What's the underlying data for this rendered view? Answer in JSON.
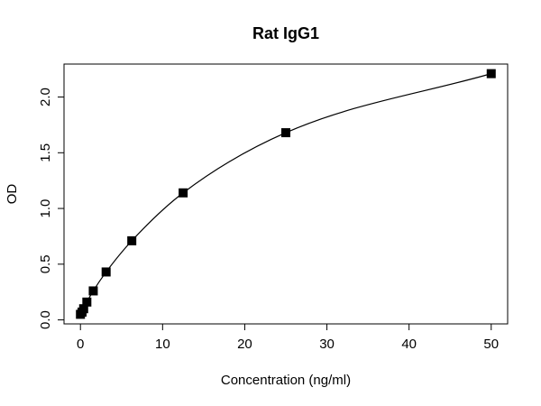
{
  "chart_data": {
    "type": "scatter",
    "title": "Rat IgG1",
    "x_label": "Concentration (ng/ml)",
    "y_label": "OD",
    "x": [
      0,
      0.195,
      0.39,
      0.78,
      1.56,
      3.125,
      6.25,
      12.5,
      25,
      50
    ],
    "values": [
      0.05,
      0.07,
      0.1,
      0.16,
      0.26,
      0.43,
      0.71,
      1.14,
      1.68,
      2.21
    ],
    "color": "#000000",
    "xlim": [
      -2,
      52
    ],
    "xticks": [
      0,
      10,
      20,
      30,
      40,
      50
    ],
    "ylim": [
      -0.036,
      2.296
    ],
    "yticks": [
      {
        "value": 0,
        "label": "0.0"
      },
      0.5,
      {
        "value": 1,
        "label": "1.0"
      },
      1.5,
      {
        "value": 2,
        "label": "2.0"
      }
    ],
    "fit_curve": true
  }
}
